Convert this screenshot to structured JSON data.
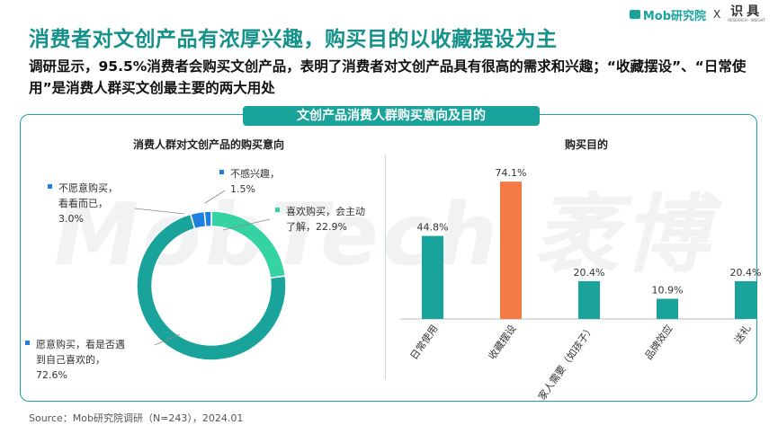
{
  "header": {
    "title": "消费者对文创产品有浓厚兴趣，购买目的以收藏摆设为主",
    "subtitle": "调研显示，95.5%消费者会购买文创产品，表明了消费者对文创产品具有很高的需求和兴趣；“收藏摆设”、“日常使用”是消费人群买文创最主要的两大用处"
  },
  "brand": {
    "logo_text": "Mob研究院",
    "separator": "X",
    "cobrand_text": "识具",
    "cobrand_tagline": "RESEARCH · INSIGHT"
  },
  "watermark": "MobTech 袤博",
  "panel_title": "文创产品消费人群购买意向及目的",
  "source": "Source：Mob研究院调研（N=243），2024.01",
  "colors": {
    "teal": "#1aa39a",
    "mint": "#35d2a4",
    "blue": "#1f7fe0",
    "orange": "#f47a46",
    "title_teal": "#15918a"
  },
  "chart_data": [
    {
      "type": "pie",
      "title": "消费人群对文创产品的购买意向",
      "variant": "donut",
      "slices": [
        {
          "label": "喜欢购买，会主动了解",
          "value": 22.9,
          "color": "#35d2a4",
          "display": [
            "喜欢购买，会主动",
            "了解，22.9%"
          ]
        },
        {
          "label": "愿意购买，看是否遇到自己喜欢的",
          "value": 72.6,
          "color": "#1aa39a",
          "display": [
            "愿意购买，看是否遇",
            "到自己喜欢的，",
            "72.6%"
          ]
        },
        {
          "label": "不愿意购买，看看而已",
          "value": 3.0,
          "color": "#1f7fe0",
          "display": [
            "不愿意购买，",
            "看看而已，",
            "3.0%"
          ]
        },
        {
          "label": "不感兴趣",
          "value": 1.5,
          "color": "#1f7fe0",
          "display": [
            "不感兴趣，",
            "1.5%"
          ]
        }
      ]
    },
    {
      "type": "bar",
      "title": "购买目的",
      "categories": [
        "日常使用",
        "收藏摆设",
        "家人需要（如孩子）",
        "品牌效应",
        "送礼"
      ],
      "values": [
        44.8,
        74.1,
        20.4,
        10.9,
        20.4
      ],
      "value_labels": [
        "44.8%",
        "74.1%",
        "20.4%",
        "10.9%",
        "20.4%"
      ],
      "colors": [
        "#1aa39a",
        "#f47a46",
        "#1aa39a",
        "#1aa39a",
        "#1aa39a"
      ],
      "ylim": [
        0,
        80
      ]
    }
  ]
}
